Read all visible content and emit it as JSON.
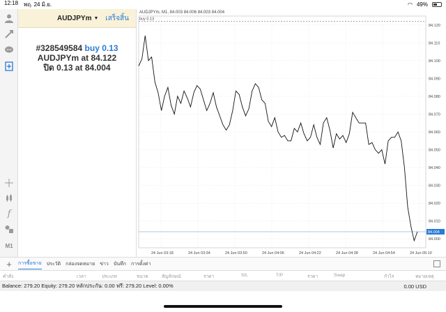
{
  "status": {
    "time": "12:18",
    "date": "พฤ. 24 มิ.ย.",
    "battery": "49%"
  },
  "panel": {
    "symbol": "AUDJPYm",
    "done": "เสร็จสิ้น",
    "ticket": "#328549584",
    "order_type": "buy 0.13",
    "line2_symbol": "AUDJPYm at",
    "line2_price": "84.122",
    "line3_label": "ปิด 0.13 at",
    "line3_price": "84.004"
  },
  "chart": {
    "header": "AUDJPYm, M1, 84.003 84.006 84.003 84.004",
    "buy_label": "buy 0.13",
    "current_price": "84.004"
  },
  "chart_data": {
    "type": "line",
    "title": "AUDJPYm, M1, 84.003 84.006 84.003 84.004",
    "ylim": [
      83.995,
      84.125
    ],
    "y_ticks": [
      "84.120",
      "84.110",
      "84.100",
      "84.090",
      "84.080",
      "84.070",
      "84.060",
      "84.050",
      "84.040",
      "84.030",
      "84.020",
      "84.010",
      "84.000"
    ],
    "x_ticks": [
      "24 Jun 03:18",
      "24 Jun 03:34",
      "24 Jun 03:50",
      "24 Jun 04:06",
      "24 Jun 04:22",
      "24 Jun 04:38",
      "24 Jun 04:54",
      "24 Jun 05:10"
    ],
    "horizontal_lines": [
      {
        "label": "buy 0.13",
        "value": 84.122
      },
      {
        "label": "84.004",
        "value": 84.004
      }
    ],
    "series": [
      {
        "values": [
          84.097,
          84.101,
          84.114,
          84.1,
          84.102,
          84.088,
          84.082,
          84.072,
          84.08,
          84.085,
          84.075,
          84.07,
          84.08,
          84.076,
          84.083,
          84.079,
          84.074,
          84.082,
          84.086,
          84.084,
          84.078,
          84.072,
          84.076,
          84.082,
          84.074,
          84.069,
          84.064,
          84.061,
          84.064,
          84.072,
          84.083,
          84.081,
          84.074,
          84.069,
          84.073,
          84.083,
          84.087,
          84.085,
          84.078,
          84.076,
          84.066,
          84.063,
          84.068,
          84.06,
          84.057,
          84.058,
          84.055,
          84.055,
          84.062,
          84.06,
          84.065,
          84.059,
          84.055,
          84.057,
          84.064,
          84.057,
          84.053,
          84.065,
          84.068,
          84.061,
          84.051,
          84.059,
          84.056,
          84.058,
          84.054,
          84.059,
          84.071,
          84.068,
          84.065,
          84.065,
          84.065,
          84.053,
          84.054,
          84.05,
          84.048,
          84.05,
          84.042,
          84.055,
          84.057,
          84.057,
          84.06,
          84.055,
          84.04,
          84.018,
          84.007,
          83.999,
          84.004
        ]
      }
    ]
  },
  "tabs": [
    "การซื้อขาย",
    "ประวัติ",
    "กล่องจดหมาย",
    "ข่าว",
    "บันทึก",
    "การตั้งค่า"
  ],
  "columns": [
    "คำสั่ง",
    "เวลา",
    "ประเภท",
    "ขนาด",
    "สัญลักษณ์",
    "ราคา",
    "S/L",
    "T/P",
    "ราคา",
    "Swap",
    "กำไร",
    "หมายเหตุ"
  ],
  "balance": {
    "text": "Balance: 279.20 Equity: 279.20 หลักประกัน: 0.00 ฟรี: 279.20 Level: 0.00%",
    "profit": "0.00  USD"
  }
}
